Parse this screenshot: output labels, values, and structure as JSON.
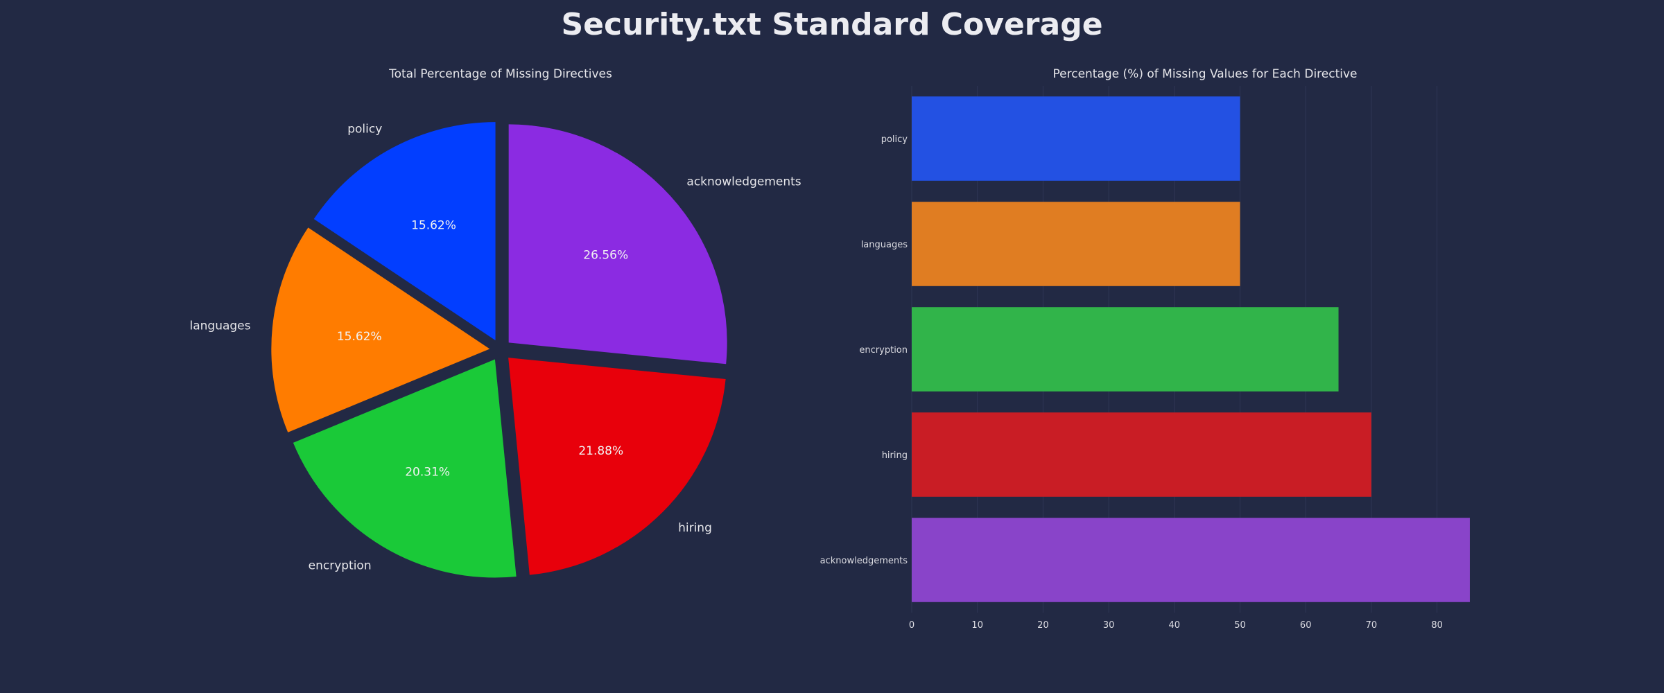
{
  "title": "Security.txt Standard Coverage",
  "chart_data": [
    {
      "type": "pie",
      "title": "Total Percentage of Missing Directives",
      "slices": [
        {
          "label": "policy",
          "value": 15.62,
          "pct_label": "15.62%",
          "color": "#023eff"
        },
        {
          "label": "languages",
          "value": 15.62,
          "pct_label": "15.62%",
          "color": "#ff7c00"
        },
        {
          "label": "encryption",
          "value": 20.31,
          "pct_label": "20.31%",
          "color": "#1ac938"
        },
        {
          "label": "hiring",
          "value": 21.88,
          "pct_label": "21.88%",
          "color": "#e8000b"
        },
        {
          "label": "acknowledgements",
          "value": 26.56,
          "pct_label": "26.56%",
          "color": "#8b2be2"
        }
      ],
      "start_angle_deg": 90,
      "direction": "counterclockwise",
      "exploded": true
    },
    {
      "type": "bar",
      "orientation": "horizontal",
      "title": "Percentage (%) of Missing Values for Each Directive",
      "categories": [
        "policy",
        "languages",
        "encryption",
        "hiring",
        "acknowledgements"
      ],
      "values": [
        50,
        50,
        65,
        70,
        85
      ],
      "colors": [
        "#2351e3",
        "#e07d22",
        "#31b44a",
        "#c91d25",
        "#8944c9"
      ],
      "xlim": [
        0,
        85
      ],
      "xticks": [
        "0",
        "10",
        "20",
        "30",
        "40",
        "50",
        "60",
        "70",
        "80"
      ],
      "grid": true
    }
  ]
}
